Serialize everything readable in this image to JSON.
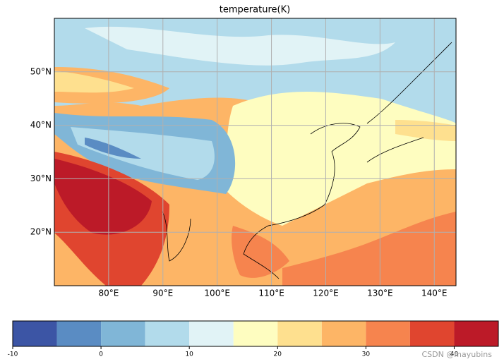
{
  "chart_data": {
    "type": "map",
    "title": "temperature(K)",
    "xlim": [
      70,
      144
    ],
    "ylim": [
      10,
      60
    ],
    "xticks": [
      {
        "value": 80,
        "label": "80°E"
      },
      {
        "value": 90,
        "label": "90°E"
      },
      {
        "value": 100,
        "label": "100°E"
      },
      {
        "value": 110,
        "label": "110°E"
      },
      {
        "value": 120,
        "label": "120°E"
      },
      {
        "value": 130,
        "label": "130°E"
      },
      {
        "value": 140,
        "label": "140°E"
      }
    ],
    "yticks": [
      {
        "value": 20,
        "label": "20°N"
      },
      {
        "value": 30,
        "label": "30°N"
      },
      {
        "value": 40,
        "label": "40°N"
      },
      {
        "value": 50,
        "label": "50°N"
      }
    ],
    "grid": true,
    "colorbar": {
      "levels": [
        -10,
        -5,
        0,
        5,
        10,
        15,
        20,
        25,
        30,
        35,
        40,
        45
      ],
      "colors": [
        "#3c55a5",
        "#5a8cc3",
        "#80b6d7",
        "#b2dbeb",
        "#e1f3f6",
        "#fefdc0",
        "#fee08f",
        "#fdb566",
        "#f6844e",
        "#e0452f",
        "#bc1a28"
      ],
      "ticks": [
        -10,
        0,
        10,
        20,
        30,
        40
      ]
    },
    "watermark": "CSDN @mayubins"
  }
}
